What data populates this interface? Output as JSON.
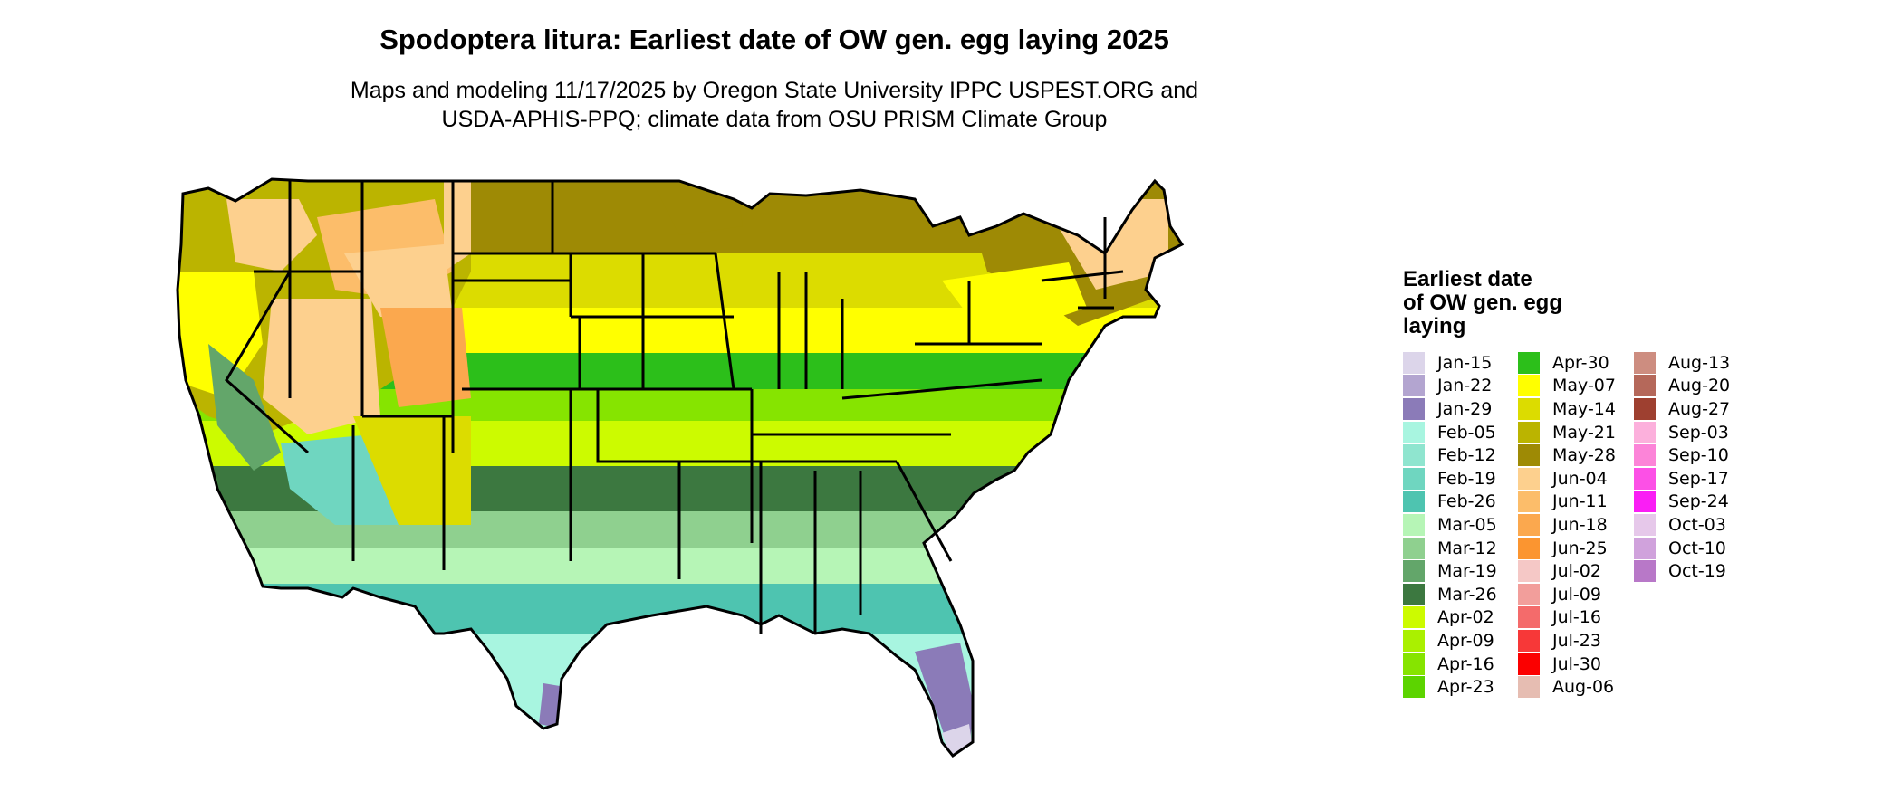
{
  "title": "Spodoptera litura: Earliest date of OW gen. egg laying 2025",
  "subtitle_line1": "Maps and modeling 11/17/2025 by Oregon State University IPPC USPEST.ORG and",
  "subtitle_line2": "USDA-APHIS-PPQ; climate data from OSU PRISM Climate Group",
  "legend": {
    "title_lines": [
      "Earliest date",
      "of OW gen. egg",
      "laying"
    ],
    "items": [
      {
        "label": "Jan-15",
        "color": "#dcd5ea"
      },
      {
        "label": "Jan-22",
        "color": "#b3a5d0"
      },
      {
        "label": "Jan-29",
        "color": "#8b7bb8"
      },
      {
        "label": "Feb-05",
        "color": "#a8f5e0"
      },
      {
        "label": "Feb-12",
        "color": "#8fe5cf"
      },
      {
        "label": "Feb-19",
        "color": "#6fd6c0"
      },
      {
        "label": "Feb-26",
        "color": "#4ec4b0"
      },
      {
        "label": "Mar-05",
        "color": "#b6f5b6"
      },
      {
        "label": "Mar-12",
        "color": "#8fd08f"
      },
      {
        "label": "Mar-19",
        "color": "#63a66a"
      },
      {
        "label": "Mar-26",
        "color": "#3c7840"
      },
      {
        "label": "Apr-02",
        "color": "#ccfb00"
      },
      {
        "label": "Apr-09",
        "color": "#aaf000"
      },
      {
        "label": "Apr-16",
        "color": "#86e400"
      },
      {
        "label": "Apr-23",
        "color": "#5cd400"
      },
      {
        "label": "Apr-30",
        "color": "#2cbf1a"
      },
      {
        "label": "May-07",
        "color": "#ffff00"
      },
      {
        "label": "May-14",
        "color": "#dcdc00"
      },
      {
        "label": "May-21",
        "color": "#bbb400"
      },
      {
        "label": "May-28",
        "color": "#9e8a05"
      },
      {
        "label": "Jun-04",
        "color": "#fdd08e"
      },
      {
        "label": "Jun-11",
        "color": "#fcbd6a"
      },
      {
        "label": "Jun-18",
        "color": "#fba84e"
      },
      {
        "label": "Jun-25",
        "color": "#fb9530"
      },
      {
        "label": "Jul-02",
        "color": "#f5c8c6"
      },
      {
        "label": "Jul-09",
        "color": "#f29e9b"
      },
      {
        "label": "Jul-16",
        "color": "#f46b6b"
      },
      {
        "label": "Jul-23",
        "color": "#f73838"
      },
      {
        "label": "Jul-30",
        "color": "#fb0000"
      },
      {
        "label": "Aug-06",
        "color": "#e6bdb2"
      },
      {
        "label": "Aug-13",
        "color": "#cd8d80"
      },
      {
        "label": "Aug-20",
        "color": "#b5685a"
      },
      {
        "label": "Aug-27",
        "color": "#9e4030"
      },
      {
        "label": "Sep-03",
        "color": "#fcb0dc"
      },
      {
        "label": "Sep-10",
        "color": "#fc84d8"
      },
      {
        "label": "Sep-17",
        "color": "#fc50e6"
      },
      {
        "label": "Sep-24",
        "color": "#fa1ef5"
      },
      {
        "label": "Oct-03",
        "color": "#e6c8ea"
      },
      {
        "label": "Oct-10",
        "color": "#d0a2dc"
      },
      {
        "label": "Oct-19",
        "color": "#b878c8"
      }
    ]
  },
  "map": {
    "region": "contiguous-united-states",
    "border_color": "#000000",
    "dominant_classes": {
      "north_plains": "May-28",
      "central_plains": "May-07",
      "mid_latitude": "Apr-30",
      "south_central": "Mar-26",
      "gulf_coast": "Feb-26",
      "south_tip": "Feb-05",
      "south_florida": "Jan-29",
      "mountains": "Jun-04"
    }
  }
}
